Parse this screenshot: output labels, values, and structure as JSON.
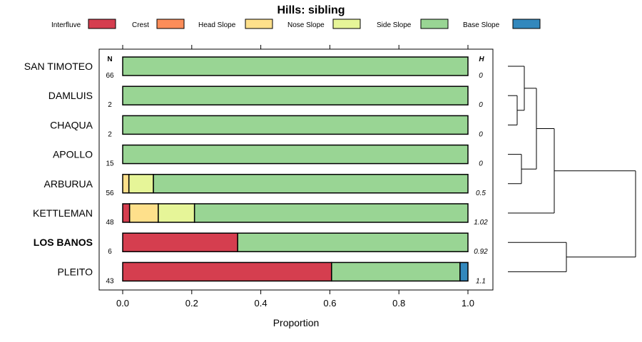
{
  "chart_data": {
    "type": "bar",
    "orientation": "horizontal",
    "stacked": true,
    "title": "Hills: sibling",
    "xlabel": "Proportion",
    "ylabel": "",
    "xlim": [
      0,
      1
    ],
    "x_ticks": [
      "0.0",
      "0.2",
      "0.4",
      "0.6",
      "0.8",
      "1.0"
    ],
    "n_header": "N",
    "h_header": "H",
    "legend_position": "top",
    "legend": [
      {
        "name": "Interfluve",
        "color": "#d53e4f"
      },
      {
        "name": "Crest",
        "color": "#fc8d59"
      },
      {
        "name": "Head Slope",
        "color": "#fee08b"
      },
      {
        "name": "Nose Slope",
        "color": "#e6f598"
      },
      {
        "name": "Side Slope",
        "color": "#99d594"
      },
      {
        "name": "Base Slope",
        "color": "#3288bd"
      }
    ],
    "categories": [
      "SAN TIMOTEO",
      "DAMLUIS",
      "CHAQUA",
      "APOLLO",
      "ARBURUA",
      "KETTLEMAN",
      "LOS BANOS",
      "PLEITO"
    ],
    "highlighted": "LOS BANOS",
    "n": [
      "66",
      "2",
      "2",
      "15",
      "56",
      "48",
      "6",
      "43"
    ],
    "h": [
      "0",
      "0",
      "0",
      "0",
      "0.5",
      "1.02",
      "0.92",
      "1.1"
    ],
    "series": [
      {
        "name": "Interfluve",
        "values": [
          0,
          0,
          0,
          0,
          0,
          0.02,
          0.333,
          0.605
        ]
      },
      {
        "name": "Crest",
        "values": [
          0,
          0,
          0,
          0,
          0,
          0,
          0,
          0
        ]
      },
      {
        "name": "Head Slope",
        "values": [
          0,
          0,
          0,
          0,
          0.018,
          0.083,
          0,
          0
        ]
      },
      {
        "name": "Nose Slope",
        "values": [
          0,
          0,
          0,
          0,
          0.071,
          0.105,
          0,
          0
        ]
      },
      {
        "name": "Side Slope",
        "values": [
          1,
          1,
          1,
          1,
          0.911,
          0.792,
          0.667,
          0.372
        ]
      },
      {
        "name": "Base Slope",
        "values": [
          0,
          0,
          0,
          0,
          0,
          0,
          0,
          0.023
        ]
      }
    ],
    "dendrogram": true
  }
}
